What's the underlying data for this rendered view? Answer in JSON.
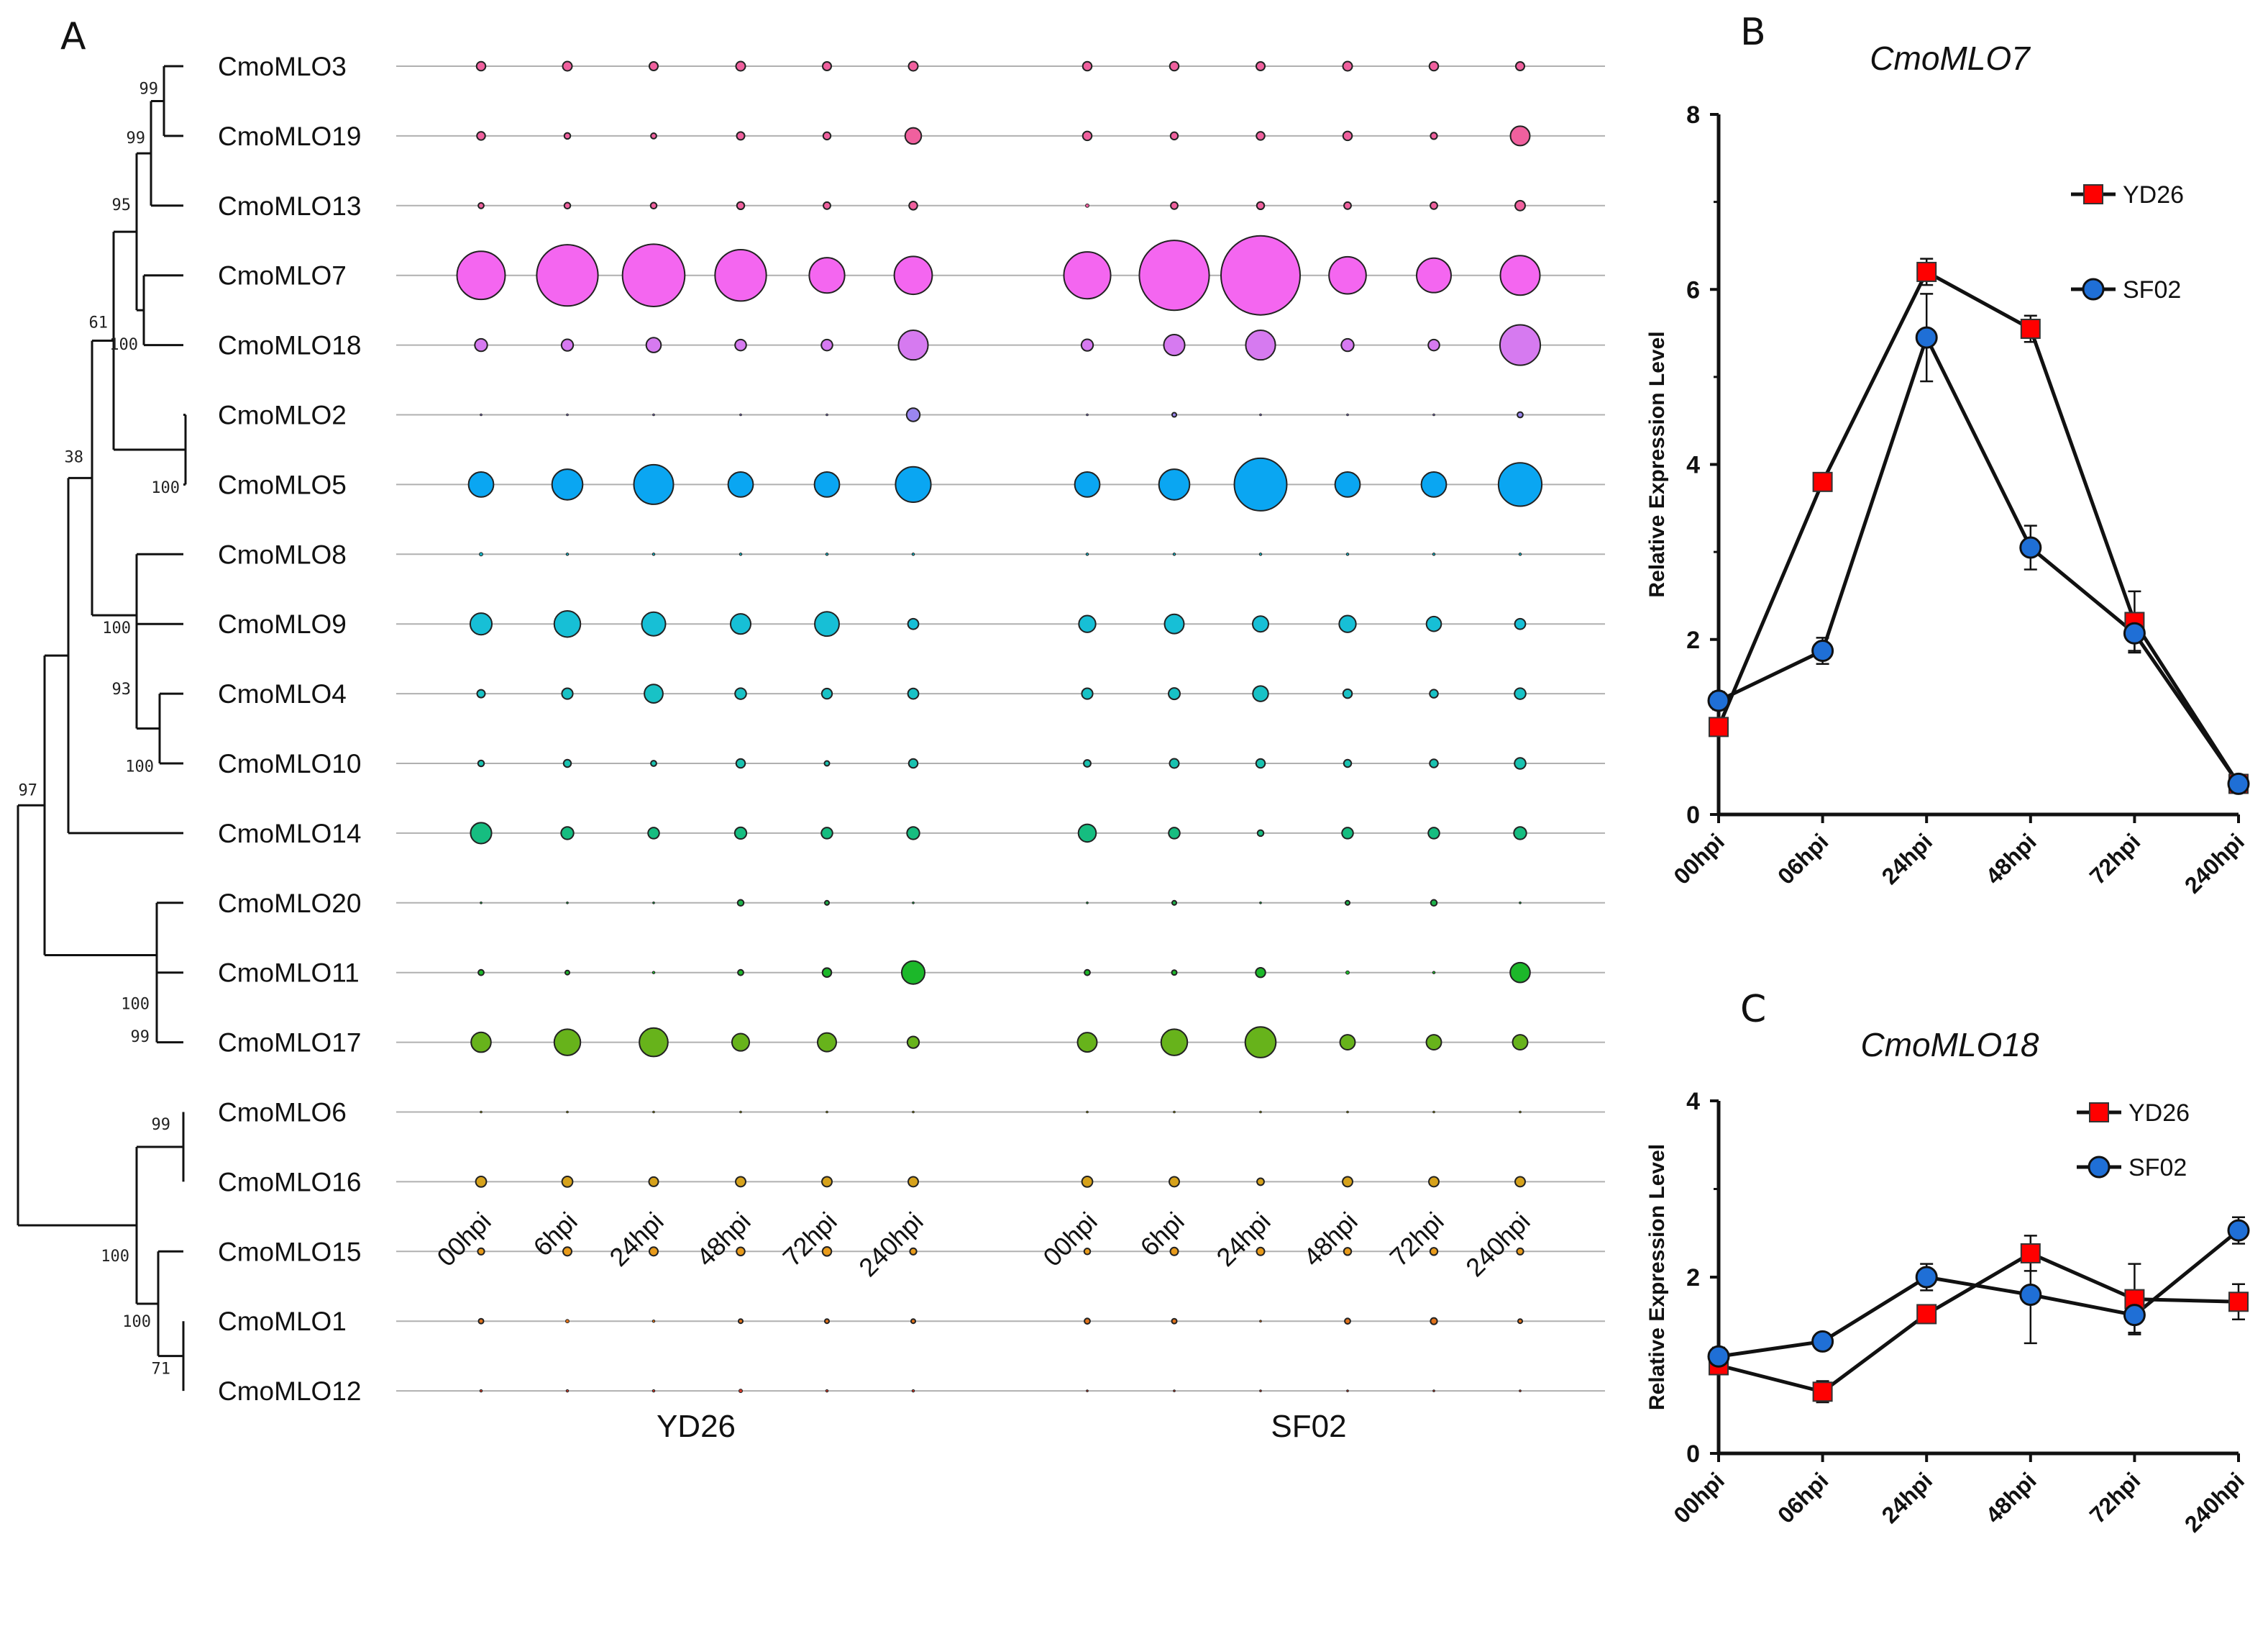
{
  "panels": {
    "a": "A",
    "b": "B",
    "c": "C"
  },
  "tree": {
    "leaves": [
      "CmoMLO3",
      "CmoMLO19",
      "CmoMLO13",
      "CmoMLO7",
      "CmoMLO18",
      "CmoMLO2",
      "CmoMLO5",
      "CmoMLO8",
      "CmoMLO9",
      "CmoMLO4",
      "CmoMLO10",
      "CmoMLO14",
      "CmoMLO20",
      "CmoMLO11",
      "CmoMLO17",
      "CmoMLO6",
      "CmoMLO16",
      "CmoMLO15",
      "CmoMLO1",
      "CmoMLO12"
    ],
    "bootstrap": [
      "99",
      "99",
      "95",
      "100",
      "61",
      "100",
      "38",
      "100",
      "93",
      "100",
      "97",
      "100",
      "99",
      "99",
      "100",
      "100",
      "71"
    ]
  },
  "chart_data": [
    {
      "type": "bubble",
      "title": "",
      "groups": [
        "YD26",
        "SF02"
      ],
      "timepoints": [
        "00hpi",
        "6hpi",
        "24hpi",
        "48hpi",
        "72hpi",
        "240hpi"
      ],
      "genes": [
        "CmoMLO3",
        "CmoMLO19",
        "CmoMLO13",
        "CmoMLO7",
        "CmoMLO18",
        "CmoMLO2",
        "CmoMLO5",
        "CmoMLO8",
        "CmoMLO9",
        "CmoMLO4",
        "CmoMLO10",
        "CmoMLO14",
        "CmoMLO20",
        "CmoMLO11",
        "CmoMLO17",
        "CmoMLO6",
        "CmoMLO16",
        "CmoMLO15",
        "CmoMLO1",
        "CmoMLO12"
      ],
      "colors": [
        "#f0609e",
        "#f0609e",
        "#f0609e",
        "#f466f0",
        "#d67af0",
        "#9a86f0",
        "#0aa6f2",
        "#17b3c4",
        "#17bfd6",
        "#18c2c6",
        "#19c2b0",
        "#16bd80",
        "#1db24a",
        "#1cb82a",
        "#67b31b",
        "#a7a61b",
        "#d6a21b",
        "#e89b1b",
        "#e0721b",
        "#cc3a2a"
      ],
      "sizes": [
        [
          [
            1.3,
            1.4,
            1.2,
            1.4,
            1.2,
            1.4
          ],
          [
            1.3,
            1.3,
            1.2,
            1.4,
            1.3,
            1.2
          ]
        ],
        [
          [
            1.1,
            0.6,
            0.5,
            1.0,
            0.9,
            4.2
          ],
          [
            1.3,
            0.9,
            1.1,
            1.3,
            0.7,
            6.0
          ]
        ],
        [
          [
            0.5,
            0.6,
            0.6,
            0.9,
            0.8,
            1.1
          ],
          [
            0.2,
            0.8,
            0.9,
            0.8,
            0.8,
            1.6
          ]
        ],
        [
          [
            37,
            60,
            62,
            42,
            20,
            23
          ],
          [
            35,
            78,
            100,
            22,
            19,
            25
          ]
        ],
        [
          [
            2.5,
            2.2,
            3.5,
            2.0,
            2.0,
            14
          ],
          [
            2.2,
            7,
            14,
            2.5,
            2.0,
            26
          ]
        ],
        [
          [
            0.02,
            0.02,
            0.05,
            0.02,
            0.02,
            2.8
          ],
          [
            0.02,
            0.3,
            0.02,
            0.02,
            0.02,
            0.5
          ]
        ],
        [
          [
            10,
            15,
            25,
            10,
            10,
            20
          ],
          [
            10,
            15,
            44,
            10,
            10,
            30
          ]
        ],
        [
          [
            0.2,
            0.1,
            0.1,
            0.1,
            0.1,
            0.1
          ],
          [
            0.1,
            0.1,
            0.1,
            0.1,
            0.1,
            0.1
          ]
        ],
        [
          [
            7.5,
            11,
            9,
            6.5,
            9.5,
            1.8
          ],
          [
            4.5,
            6,
            4,
            4.5,
            3.5,
            1.8
          ]
        ],
        [
          [
            1.0,
            1.9,
            5.5,
            2.0,
            1.7,
            1.8
          ],
          [
            1.9,
            2.1,
            3.8,
            1.3,
            1.1,
            2.0
          ]
        ],
        [
          [
            0.6,
            0.9,
            0.5,
            1.3,
            0.4,
            1.3
          ],
          [
            0.8,
            1.4,
            1.3,
            0.9,
            1.1,
            2.0
          ]
        ],
        [
          [
            7,
            2.5,
            2.0,
            2.2,
            2.0,
            2.5
          ],
          [
            5,
            2.0,
            0.6,
            2.0,
            2.0,
            2.5
          ]
        ],
        [
          [
            0.05,
            0.02,
            0.05,
            0.6,
            0.3,
            0.05
          ],
          [
            0.02,
            0.3,
            0.05,
            0.3,
            0.6,
            0.02
          ]
        ],
        [
          [
            0.5,
            0.3,
            0.1,
            0.5,
            1.3,
            8.5
          ],
          [
            0.5,
            0.4,
            1.5,
            0.2,
            0.1,
            6.3
          ]
        ],
        [
          [
            6.3,
            11,
            13,
            4.8,
            5.6,
            2.2
          ],
          [
            6,
            11,
            15,
            3.6,
            3.6,
            3.6
          ]
        ],
        [
          [
            0.02,
            0.02,
            0.02,
            0.02,
            0.02,
            0.02
          ],
          [
            0.02,
            0.02,
            0.02,
            0.02,
            0.02,
            0.02
          ]
        ],
        [
          [
            1.8,
            1.8,
            1.4,
            1.6,
            1.6,
            1.6
          ],
          [
            1.8,
            1.6,
            0.8,
            1.6,
            1.6,
            1.6
          ]
        ],
        [
          [
            0.7,
            1.2,
            1.2,
            1.1,
            1.3,
            0.7
          ],
          [
            0.6,
            1.0,
            1.0,
            0.9,
            0.9,
            0.7
          ]
        ],
        [
          [
            0.4,
            0.2,
            0.1,
            0.3,
            0.3,
            0.3
          ],
          [
            0.5,
            0.4,
            0.05,
            0.5,
            0.7,
            0.3
          ]
        ],
        [
          [
            0.1,
            0.1,
            0.1,
            0.2,
            0.1,
            0.1
          ],
          [
            0.05,
            0.05,
            0.05,
            0.05,
            0.05,
            0.05
          ]
        ]
      ]
    },
    {
      "type": "line",
      "title": "CmoMLO7",
      "categories": [
        "00hpi",
        "06hpi",
        "24hpi",
        "48hpi",
        "72hpi",
        "240hpi"
      ],
      "ylabel": "Relative Expression Level",
      "ylim": [
        0,
        8
      ],
      "yticks": [
        0,
        2,
        4,
        6,
        8
      ],
      "series": [
        {
          "name": "YD26",
          "marker": "square",
          "color": "#ff0000",
          "values": [
            1.0,
            3.8,
            6.2,
            5.55,
            2.2,
            0.35
          ],
          "errors": [
            0.1,
            0.1,
            0.15,
            0.15,
            0.35,
            0.05
          ]
        },
        {
          "name": "SF02",
          "marker": "circle",
          "color": "#1f6fd6",
          "values": [
            1.3,
            1.87,
            5.45,
            3.05,
            2.07,
            0.35
          ],
          "errors": [
            0.1,
            0.15,
            0.5,
            0.25,
            0.2,
            0.05
          ]
        }
      ]
    },
    {
      "type": "line",
      "title": "CmoMLO18",
      "categories": [
        "00hpi",
        "06hpi",
        "24hpi",
        "48hpi",
        "72hpi",
        "240hpi"
      ],
      "ylabel": "Relative Expression Level",
      "ylim": [
        0,
        4
      ],
      "yticks": [
        0,
        2,
        4
      ],
      "series": [
        {
          "name": "YD26",
          "marker": "square",
          "color": "#ff0000",
          "values": [
            1.0,
            0.7,
            1.58,
            2.27,
            1.75,
            1.72
          ],
          "errors": [
            0.1,
            0.12,
            0.08,
            0.2,
            0.4,
            0.2
          ]
        },
        {
          "name": "SF02",
          "marker": "circle",
          "color": "#1f6fd6",
          "values": [
            1.1,
            1.27,
            2.0,
            1.8,
            1.57,
            2.53
          ],
          "errors": [
            0.1,
            0.05,
            0.15,
            0.55,
            0.2,
            0.15
          ]
        }
      ]
    }
  ]
}
